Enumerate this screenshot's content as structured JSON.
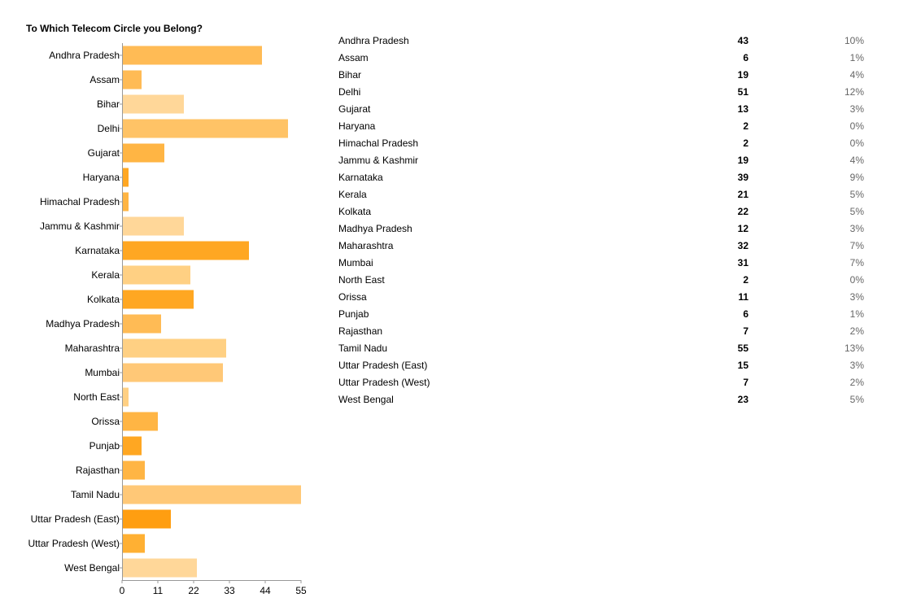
{
  "chart_data": {
    "type": "bar",
    "orientation": "horizontal",
    "title": "To Which Telecom Circle you Belong?",
    "categories": [
      "Andhra Pradesh",
      "Assam",
      "Bihar",
      "Delhi",
      "Gujarat",
      "Haryana",
      "Himachal Pradesh",
      "Jammu & Kashmir",
      "Karnataka",
      "Kerala",
      "Kolkata",
      "Madhya Pradesh",
      "Maharashtra",
      "Mumbai",
      "North East",
      "Orissa",
      "Punjab",
      "Rajasthan",
      "Tamil Nadu",
      "Uttar Pradesh (East)",
      "Uttar Pradesh (West)",
      "West Bengal"
    ],
    "values": [
      43,
      6,
      19,
      51,
      13,
      2,
      2,
      19,
      39,
      21,
      22,
      12,
      32,
      31,
      2,
      11,
      6,
      7,
      55,
      15,
      7,
      23
    ],
    "colors": [
      "#ffbb55",
      "#ffbb55",
      "#ffd799",
      "#ffc366",
      "#ffb544",
      "#ffa722",
      "#ffb544",
      "#ffd799",
      "#ffa722",
      "#ffd083",
      "#ffa722",
      "#ffbb55",
      "#ffd083",
      "#ffc877",
      "#ffd083",
      "#ffb544",
      "#ffa722",
      "#ffb544",
      "#ffc877",
      "#ff9e11",
      "#ffb033",
      "#ffd799"
    ],
    "xlim": [
      0,
      55
    ],
    "xticks": [
      "0",
      "11",
      "22",
      "33",
      "44",
      "55"
    ],
    "grid": false
  },
  "table": {
    "rows": [
      {
        "name": "Andhra Pradesh",
        "count": "43",
        "pct": "10%"
      },
      {
        "name": "Assam",
        "count": "6",
        "pct": "1%"
      },
      {
        "name": "Bihar",
        "count": "19",
        "pct": "4%"
      },
      {
        "name": "Delhi",
        "count": "51",
        "pct": "12%"
      },
      {
        "name": "Gujarat",
        "count": "13",
        "pct": "3%"
      },
      {
        "name": "Haryana",
        "count": "2",
        "pct": "0%"
      },
      {
        "name": "Himachal Pradesh",
        "count": "2",
        "pct": "0%"
      },
      {
        "name": "Jammu & Kashmir",
        "count": "19",
        "pct": "4%"
      },
      {
        "name": "Karnataka",
        "count": "39",
        "pct": "9%"
      },
      {
        "name": "Kerala",
        "count": "21",
        "pct": "5%"
      },
      {
        "name": "Kolkata",
        "count": "22",
        "pct": "5%"
      },
      {
        "name": "Madhya Pradesh",
        "count": "12",
        "pct": "3%"
      },
      {
        "name": "Maharashtra",
        "count": "32",
        "pct": "7%"
      },
      {
        "name": "Mumbai",
        "count": "31",
        "pct": "7%"
      },
      {
        "name": "North East",
        "count": "2",
        "pct": "0%"
      },
      {
        "name": "Orissa",
        "count": "11",
        "pct": "3%"
      },
      {
        "name": "Punjab",
        "count": "6",
        "pct": "1%"
      },
      {
        "name": "Rajasthan",
        "count": "7",
        "pct": "2%"
      },
      {
        "name": "Tamil Nadu",
        "count": "55",
        "pct": "13%"
      },
      {
        "name": "Uttar Pradesh (East)",
        "count": "15",
        "pct": "3%"
      },
      {
        "name": "Uttar Pradesh (West)",
        "count": "7",
        "pct": "2%"
      },
      {
        "name": "West Bengal",
        "count": "23",
        "pct": "5%"
      }
    ]
  }
}
